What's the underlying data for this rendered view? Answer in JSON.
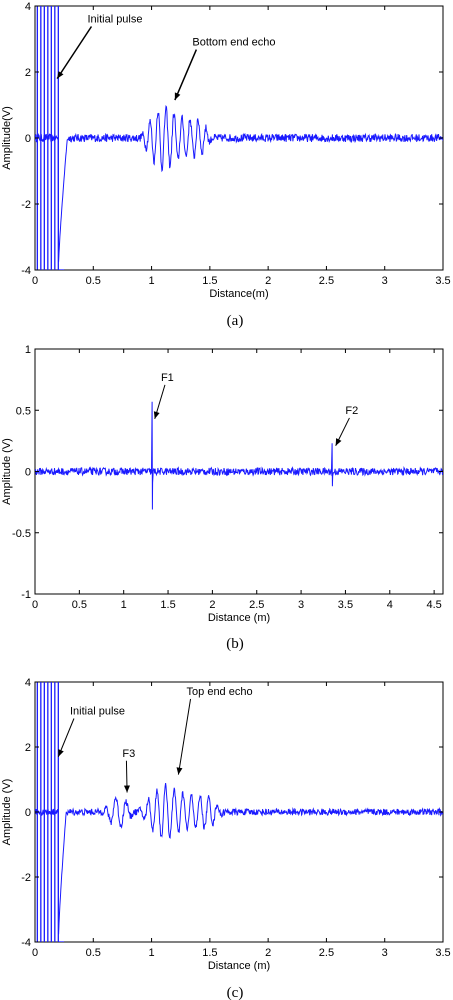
{
  "chart_data": [
    {
      "type": "line",
      "panel_label": "(a)",
      "xlabel": "Distance(m)",
      "ylabel": "Amplitude(V)",
      "xlim": [
        0,
        3.5
      ],
      "ylim": [
        -4,
        4
      ],
      "xticks": [
        "0",
        "0.5",
        "1",
        "1.5",
        "2",
        "2.5",
        "3",
        "3.5"
      ],
      "yticks": [
        "-4",
        "-2",
        "0",
        "2",
        "4"
      ],
      "grid": false,
      "line_color": "#1a1aff",
      "initial_pulse": {
        "x_end": 0.28,
        "crossings": [
          0.02,
          0.05,
          0.08,
          0.11,
          0.14,
          0.17,
          0.2
        ]
      },
      "echo": {
        "start": 0.9,
        "end": 1.52,
        "peak_amplitude": 1.2,
        "cycles": 9
      },
      "noise_amplitude": 0.12,
      "annotations": [
        {
          "text": "Initial pulse",
          "x": 0.45,
          "y": 3.5,
          "arrow_to": [
            0.19,
            1.8
          ]
        },
        {
          "text": "Bottom end echo",
          "x": 1.35,
          "y": 2.8,
          "arrow_to": [
            1.2,
            1.15
          ]
        }
      ]
    },
    {
      "type": "line",
      "panel_label": "(b)",
      "xlabel": "Distance (m)",
      "ylabel": "Amplitude (V)",
      "xlim": [
        0,
        4.6
      ],
      "ylim": [
        -1,
        1
      ],
      "xticks": [
        "0",
        "0.5",
        "1",
        "1.5",
        "2",
        "2.5",
        "3",
        "3.5",
        "4",
        "4.5"
      ],
      "yticks": [
        "-1",
        "-0.5",
        "0",
        "0.5",
        "1"
      ],
      "grid": false,
      "line_color": "#1a1aff",
      "spikes": [
        {
          "label": "F1",
          "x": 1.32,
          "up": 0.57,
          "down": -0.31
        },
        {
          "label": "F2",
          "x": 3.35,
          "up": 0.23,
          "down": -0.12
        }
      ],
      "noise_amplitude": 0.03,
      "annotations": [
        {
          "text": "F1",
          "x": 1.42,
          "y": 0.74,
          "arrow_to": [
            1.35,
            0.43
          ]
        },
        {
          "text": "F2",
          "x": 3.5,
          "y": 0.47,
          "arrow_to": [
            3.39,
            0.21
          ]
        }
      ]
    },
    {
      "type": "line",
      "panel_label": "(c)",
      "xlabel": "Distance (m)",
      "ylabel": "Amplitude (V)",
      "xlim": [
        0,
        3.5
      ],
      "ylim": [
        -4,
        4
      ],
      "xticks": [
        "0",
        "0.5",
        "1",
        "1.5",
        "2",
        "2.5",
        "3",
        "3.5"
      ],
      "yticks": [
        "-4",
        "-2",
        "0",
        "2",
        "4"
      ],
      "grid": false,
      "line_color": "#1a1aff",
      "initial_pulse": {
        "x_end": 0.27,
        "crossings": [
          0.02,
          0.05,
          0.08,
          0.11,
          0.14,
          0.17,
          0.2
        ]
      },
      "precursor": {
        "start": 0.58,
        "end": 0.85,
        "peak_amplitude": 0.45
      },
      "echo": {
        "start": 0.88,
        "end": 1.62,
        "peak_amplitude": 1.05,
        "cycles": 10
      },
      "noise_amplitude": 0.1,
      "annotations": [
        {
          "text": "Initial pulse",
          "x": 0.3,
          "y": 3.0,
          "arrow_to": [
            0.2,
            1.7
          ]
        },
        {
          "text": "F3",
          "x": 0.75,
          "y": 1.7,
          "arrow_to": [
            0.79,
            0.6
          ]
        },
        {
          "text": "Top end echo",
          "x": 1.3,
          "y": 3.6,
          "arrow_to": [
            1.23,
            1.15
          ]
        }
      ]
    }
  ]
}
